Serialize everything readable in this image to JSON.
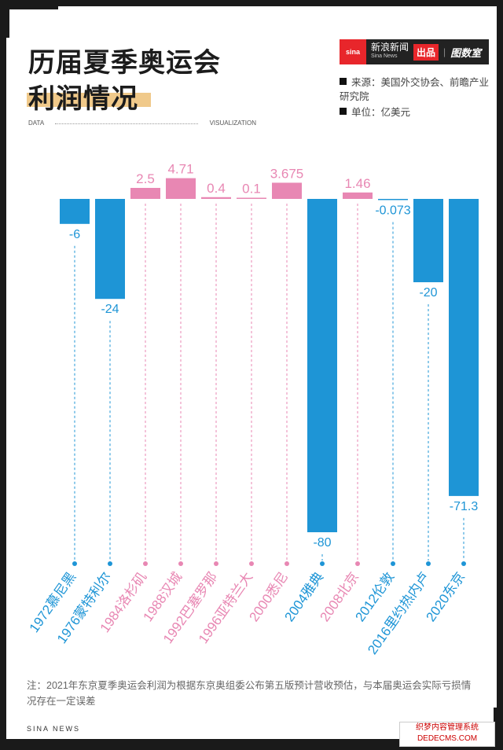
{
  "header": {
    "title_line1": "历届夏季奥运会",
    "title_line2": "利润情况",
    "brand_logo": "sina",
    "brand_name": "新浪新闻",
    "brand_sub": "Sina News",
    "brand_pub": "出品",
    "brand_column": "图数室",
    "source_label": "来源：美国外交协会、前瞻产业研究院",
    "unit_label": "单位：亿美元",
    "data_tag": "DATA",
    "viz_tag": "VISUALIZATION"
  },
  "colors": {
    "positive": "#e887b3",
    "negative": "#1e95d6"
  },
  "chart_data": {
    "type": "bar",
    "categories": [
      "1972慕尼黑",
      "1976蒙特利尔",
      "1984洛杉矶",
      "1988汉城",
      "1992巴塞罗那",
      "1996亚特兰大",
      "2000悉尼",
      "2004雅典",
      "2008北京",
      "2012伦敦",
      "2016里约热内卢",
      "2020东京"
    ],
    "values": [
      -6,
      -24,
      2.5,
      4.71,
      0.4,
      0.1,
      3.675,
      -80,
      1.46,
      -0.073,
      -20,
      -71.3
    ],
    "labels": [
      "-6",
      "-24",
      "2.5",
      "4.71",
      "0.4",
      "0.1",
      "3.675",
      "-80",
      "1.46",
      "-0.073",
      "-20",
      "-71.3"
    ],
    "ylabel": "亿美元",
    "ylim": [
      -80,
      4.71
    ],
    "grid": false,
    "legend": "none"
  },
  "note": "注：2021年东京夏季奥运会利润为根据东京奥组委公布第五版预计营收预估，与本届奥运会实际亏损情况存在一定误差",
  "footer": "SINA NEWS",
  "watermark": "织梦内容管理系统 DEDECMS.COM"
}
